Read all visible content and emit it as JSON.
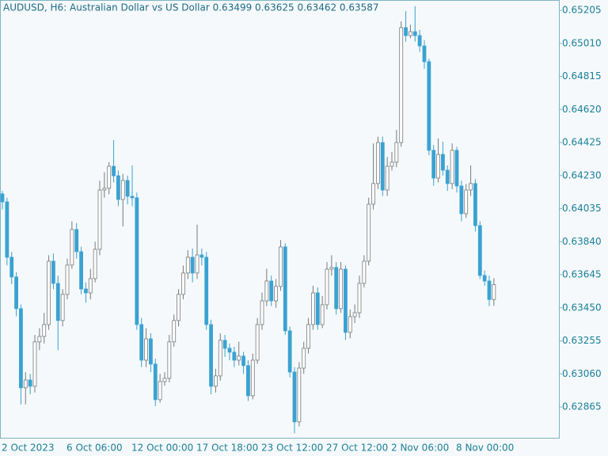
{
  "chart_data": {
    "type": "candlestick",
    "title": "AUDUSD, H6:  Australian Dollar vs US Dollar  0.63499 0.63625 0.63462 0.63587",
    "categories": [
      "2 Oct 2023",
      null,
      null,
      null,
      null,
      null,
      null,
      null,
      null,
      null,
      null,
      null,
      null,
      null,
      "6 Oct 06:00",
      null,
      null,
      null,
      null,
      null,
      null,
      null,
      null,
      null,
      null,
      null,
      null,
      null,
      "12 Oct 00:00",
      null,
      null,
      null,
      null,
      null,
      null,
      null,
      null,
      null,
      null,
      null,
      null,
      null,
      "17 Oct 18:00",
      null,
      null,
      null,
      null,
      null,
      null,
      null,
      null,
      null,
      null,
      null,
      null,
      null,
      "23 Oct 12:00",
      null,
      null,
      null,
      null,
      null,
      null,
      null,
      null,
      null,
      null,
      null,
      null,
      null,
      "27 Oct 12:00",
      null,
      null,
      null,
      null,
      null,
      null,
      null,
      null,
      null,
      null,
      null,
      null,
      null,
      "2 Nov 06:00",
      null,
      null,
      null,
      null,
      null,
      null,
      null,
      null,
      null,
      null,
      null,
      null,
      null,
      "8 Nov 00:00",
      null,
      null,
      null,
      null,
      null,
      null,
      null,
      null
    ],
    "open": [
      0.64122,
      0.64075,
      0.63748,
      0.63632,
      0.63445,
      0.62978,
      0.63024,
      0.62987,
      0.63249,
      0.63281,
      0.63351,
      0.63725,
      0.63594,
      0.63375,
      0.63529,
      0.63702,
      0.63912,
      0.63781,
      0.63561,
      0.63538,
      0.63622,
      0.63795,
      0.64145,
      0.64155,
      0.64285,
      0.64229,
      0.64089,
      0.64201,
      0.64108,
      0.64099,
      0.63351,
      0.63141,
      0.63267,
      0.63118,
      0.62908,
      0.63015,
      0.63034,
      0.63249,
      0.63375,
      0.63529,
      0.63655,
      0.63748,
      0.63655,
      0.63762,
      0.63748,
      0.63351,
      0.62987,
      0.63048,
      0.63258,
      0.63211,
      0.63188,
      0.63141,
      0.63165,
      0.63109,
      0.62931,
      0.63141,
      0.63351,
      0.63491,
      0.63608,
      0.63491,
      0.63576,
      0.63809,
      0.63314,
      0.63071,
      0.62777,
      0.63094,
      0.63211,
      0.63351,
      0.63538,
      0.63351,
      0.63468,
      0.63678,
      0.63688,
      0.63445,
      0.63678,
      0.63305,
      0.63398,
      0.63421,
      0.63594,
      0.63725,
      0.64061,
      0.64183,
      0.64425,
      0.64145,
      0.64285,
      0.64309,
      0.64425,
      0.65103,
      0.65056,
      0.65079,
      0.65056,
      0.64995,
      0.64902,
      0.64379,
      0.64215,
      0.64355,
      0.64262,
      0.64183,
      0.64379,
      0.64169,
      0.64005,
      0.64145,
      0.64183,
      0.63935,
      0.63641,
      0.63608,
      0.63499
    ],
    "high": [
      0.6414,
      0.641,
      0.6378,
      0.6366,
      0.6347,
      0.6307,
      0.6306,
      0.6329,
      0.6333,
      0.6342,
      0.6376,
      0.6377,
      0.6364,
      0.6356,
      0.6374,
      0.6396,
      0.6395,
      0.6381,
      0.636,
      0.6368,
      0.6384,
      0.642,
      0.6425,
      0.6431,
      0.6444,
      0.6426,
      0.6424,
      0.6423,
      0.6429,
      0.6413,
      0.6339,
      0.6333,
      0.633,
      0.6315,
      0.6306,
      0.6307,
      0.6329,
      0.6341,
      0.6356,
      0.637,
      0.6379,
      0.638,
      0.6394,
      0.638,
      0.6378,
      0.6338,
      0.6309,
      0.633,
      0.6329,
      0.6324,
      0.6322,
      0.6325,
      0.6319,
      0.6314,
      0.6318,
      0.6339,
      0.6354,
      0.6368,
      0.6364,
      0.6362,
      0.6385,
      0.6383,
      0.6334,
      0.631,
      0.6313,
      0.6325,
      0.6339,
      0.6358,
      0.6357,
      0.6352,
      0.6372,
      0.6376,
      0.6372,
      0.6372,
      0.637,
      0.6344,
      0.6347,
      0.6364,
      0.6376,
      0.641,
      0.6442,
      0.6446,
      0.6446,
      0.6434,
      0.6437,
      0.645,
      0.6514,
      0.652,
      0.6512,
      0.6523,
      0.6509,
      0.6503,
      0.6492,
      0.6441,
      0.6445,
      0.6443,
      0.6429,
      0.6442,
      0.644,
      0.642,
      0.6418,
      0.6429,
      0.6421,
      0.6396,
      0.6367,
      0.6364,
      0.63625
    ],
    "low": [
      0.6403,
      0.637,
      0.6359,
      0.634,
      0.6288,
      0.6288,
      0.6294,
      0.6295,
      0.632,
      0.6324,
      0.6332,
      0.6356,
      0.632,
      0.6334,
      0.635,
      0.6368,
      0.6374,
      0.6353,
      0.6348,
      0.635,
      0.636,
      0.6376,
      0.641,
      0.6412,
      0.6419,
      0.6405,
      0.6393,
      0.6406,
      0.6405,
      0.6332,
      0.631,
      0.631,
      0.6307,
      0.6287,
      0.6289,
      0.6299,
      0.6301,
      0.6322,
      0.6334,
      0.635,
      0.6362,
      0.636,
      0.6362,
      0.637,
      0.6332,
      0.6294,
      0.6295,
      0.6302,
      0.6316,
      0.6314,
      0.631,
      0.6311,
      0.6306,
      0.629,
      0.6291,
      0.6312,
      0.6332,
      0.6346,
      0.6346,
      0.6345,
      0.6355,
      0.6329,
      0.6304,
      0.6271,
      0.6275,
      0.6306,
      0.6318,
      0.6332,
      0.6332,
      0.6333,
      0.6344,
      0.6364,
      0.6341,
      0.6342,
      0.6326,
      0.6327,
      0.6336,
      0.6339,
      0.6357,
      0.637,
      0.6403,
      0.6415,
      0.6411,
      0.6411,
      0.6426,
      0.6428,
      0.644,
      0.6502,
      0.6504,
      0.6502,
      0.6496,
      0.6486,
      0.6435,
      0.6417,
      0.6419,
      0.6423,
      0.6414,
      0.6415,
      0.6413,
      0.6396,
      0.6398,
      0.6411,
      0.639,
      0.6362,
      0.6358,
      0.6346,
      0.63462
    ],
    "close": [
      0.64075,
      0.63748,
      0.63632,
      0.63445,
      0.62978,
      0.63024,
      0.62987,
      0.63249,
      0.63281,
      0.63351,
      0.63725,
      0.63594,
      0.63375,
      0.63529,
      0.63702,
      0.63912,
      0.63781,
      0.63561,
      0.63538,
      0.63622,
      0.63795,
      0.64145,
      0.64155,
      0.64285,
      0.64229,
      0.64089,
      0.64201,
      0.64108,
      0.64099,
      0.63351,
      0.63141,
      0.63267,
      0.63118,
      0.62908,
      0.63015,
      0.63034,
      0.63249,
      0.63375,
      0.63529,
      0.63655,
      0.63748,
      0.63655,
      0.63762,
      0.63748,
      0.63351,
      0.62987,
      0.63048,
      0.63258,
      0.63211,
      0.63188,
      0.63141,
      0.63165,
      0.63109,
      0.62931,
      0.63141,
      0.63351,
      0.63491,
      0.63608,
      0.63491,
      0.63576,
      0.63809,
      0.63314,
      0.63071,
      0.62777,
      0.63094,
      0.63211,
      0.63351,
      0.63538,
      0.63351,
      0.63468,
      0.63678,
      0.63688,
      0.63445,
      0.63678,
      0.63305,
      0.63398,
      0.63421,
      0.63594,
      0.63725,
      0.64061,
      0.64183,
      0.64425,
      0.64145,
      0.64285,
      0.64309,
      0.64425,
      0.65103,
      0.65056,
      0.65079,
      0.65056,
      0.64995,
      0.64902,
      0.64379,
      0.64215,
      0.64355,
      0.64262,
      0.64183,
      0.64379,
      0.64169,
      0.64005,
      0.64145,
      0.64183,
      0.63935,
      0.63641,
      0.63608,
      0.63499,
      0.63587
    ],
    "up_color": "#ffffff",
    "up_edge": "#7a7a7a",
    "down_color": "#3aa2d2",
    "ylim": [
      0.62683,
      0.65266
    ],
    "yticks": [
      0.62865,
      {
        "value": 0.6306,
        "label": "0.63060"
      },
      0.63255,
      {
        "value": 0.6345,
        "label": "0.63450"
      },
      0.63645,
      {
        "value": 0.6384,
        "label": "0.63840"
      },
      0.64035,
      {
        "value": 0.6423,
        "label": "0.64230"
      },
      0.64425,
      {
        "value": 0.6462,
        "label": "0.64620"
      },
      0.64815,
      {
        "value": 0.6501,
        "label": "0.65010"
      },
      0.65205
    ],
    "grid": false
  }
}
